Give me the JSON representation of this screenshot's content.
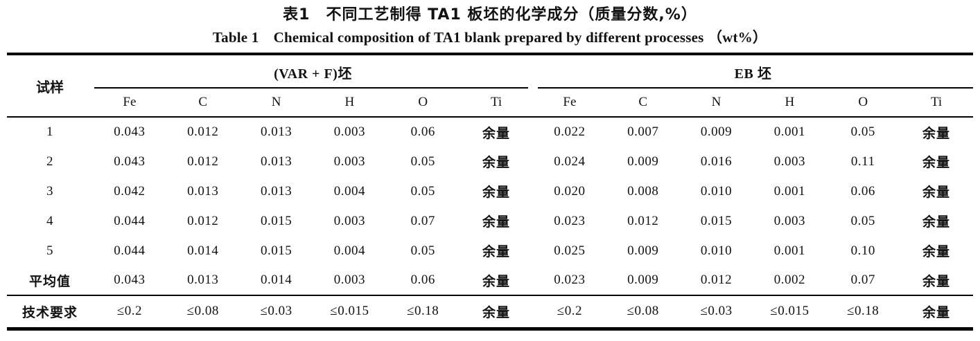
{
  "title": {
    "zh": "表1　不同工艺制得 TA1 板坯的化学成分（质量分数,%）",
    "en": "Table 1　Chemical composition of TA1 blank prepared by different processes （wt%）"
  },
  "table": {
    "corner_label": "试样",
    "balance_label": "余量",
    "groups": [
      {
        "label": "(VAR + F)坯",
        "columns": [
          "Fe",
          "C",
          "N",
          "H",
          "O",
          "Ti"
        ]
      },
      {
        "label": "EB 坯",
        "columns": [
          "Fe",
          "C",
          "N",
          "H",
          "O",
          "Ti"
        ]
      }
    ],
    "rows": [
      {
        "label": "1",
        "var_f": [
          "0.043",
          "0.012",
          "0.013",
          "0.003",
          "0.06",
          "余量"
        ],
        "eb": [
          "0.022",
          "0.007",
          "0.009",
          "0.001",
          "0.05",
          "余量"
        ]
      },
      {
        "label": "2",
        "var_f": [
          "0.043",
          "0.012",
          "0.013",
          "0.003",
          "0.05",
          "余量"
        ],
        "eb": [
          "0.024",
          "0.009",
          "0.016",
          "0.003",
          "0.11",
          "余量"
        ]
      },
      {
        "label": "3",
        "var_f": [
          "0.042",
          "0.013",
          "0.013",
          "0.004",
          "0.05",
          "余量"
        ],
        "eb": [
          "0.020",
          "0.008",
          "0.010",
          "0.001",
          "0.06",
          "余量"
        ]
      },
      {
        "label": "4",
        "var_f": [
          "0.044",
          "0.012",
          "0.015",
          "0.003",
          "0.07",
          "余量"
        ],
        "eb": [
          "0.023",
          "0.012",
          "0.015",
          "0.003",
          "0.05",
          "余量"
        ]
      },
      {
        "label": "5",
        "var_f": [
          "0.044",
          "0.014",
          "0.015",
          "0.004",
          "0.05",
          "余量"
        ],
        "eb": [
          "0.025",
          "0.009",
          "0.010",
          "0.001",
          "0.10",
          "余量"
        ]
      },
      {
        "label": "平均值",
        "var_f": [
          "0.043",
          "0.013",
          "0.014",
          "0.003",
          "0.06",
          "余量"
        ],
        "eb": [
          "0.023",
          "0.009",
          "0.012",
          "0.002",
          "0.07",
          "余量"
        ]
      }
    ],
    "requirement_row": {
      "label": "技术要求",
      "var_f": [
        "≤0.2",
        "≤0.08",
        "≤0.03",
        "≤0.015",
        "≤0.18",
        "余量"
      ],
      "eb": [
        "≤0.2",
        "≤0.08",
        "≤0.03",
        "≤0.015",
        "≤0.18",
        "余量"
      ]
    }
  }
}
